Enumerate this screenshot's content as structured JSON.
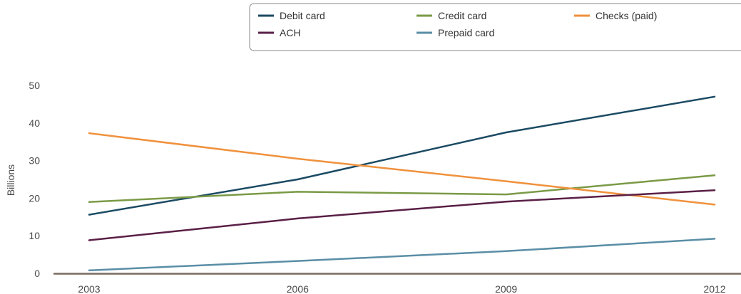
{
  "chart_data": {
    "type": "line",
    "x": [
      "2003",
      "2006",
      "2009",
      "2012"
    ],
    "ylabel": "Billions",
    "ylim": [
      0,
      50
    ],
    "yticks": [
      0,
      10,
      20,
      30,
      40,
      50
    ],
    "grid": false,
    "legend_position": "top-right",
    "series": [
      {
        "name": "Debit card",
        "color": "#1b4a63",
        "values": [
          15.6,
          25.0,
          37.5,
          47.0
        ]
      },
      {
        "name": "Credit card",
        "color": "#7a9a46",
        "values": [
          19.0,
          21.7,
          21.0,
          26.1
        ]
      },
      {
        "name": "Checks (paid)",
        "color": "#f0913c",
        "values": [
          37.3,
          30.5,
          24.5,
          18.3
        ]
      },
      {
        "name": "ACH",
        "color": "#5a1f46",
        "values": [
          8.8,
          14.6,
          19.1,
          22.1
        ]
      },
      {
        "name": "Prepaid card",
        "color": "#5a8ea6",
        "values": [
          0.8,
          3.3,
          5.9,
          9.2
        ]
      }
    ]
  }
}
